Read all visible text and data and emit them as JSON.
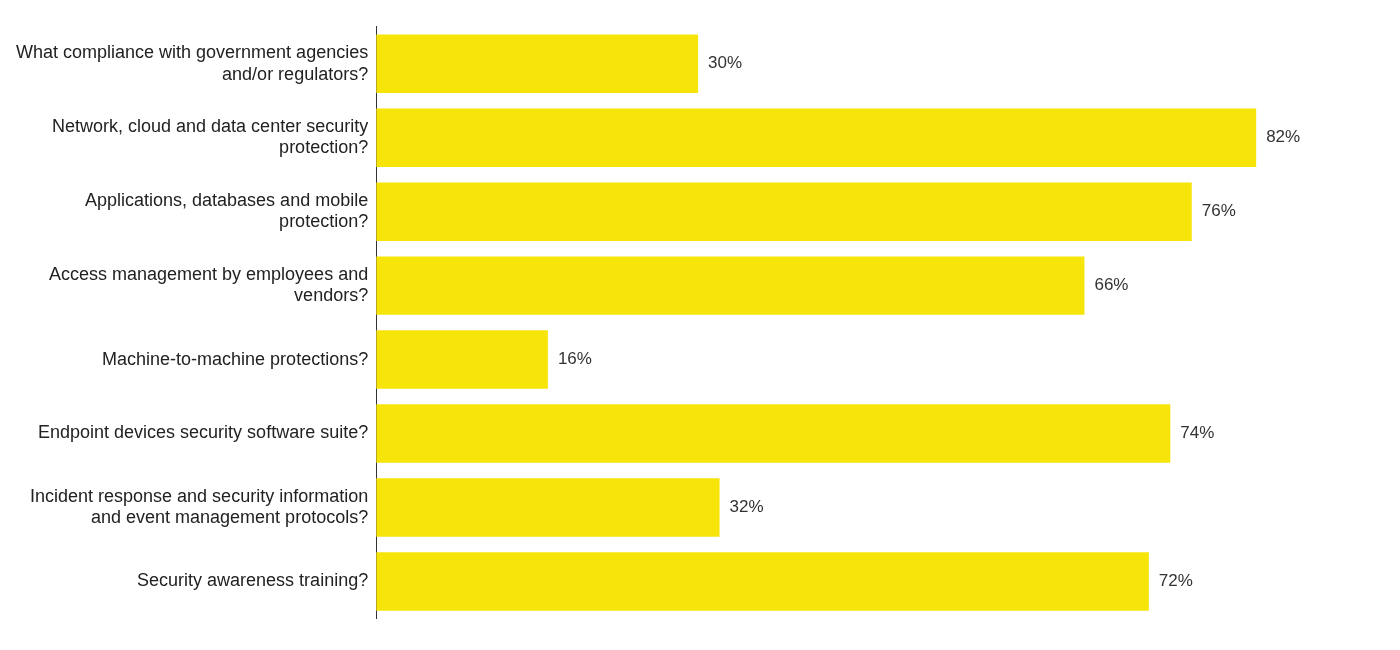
{
  "chart_data": {
    "type": "bar",
    "orientation": "horizontal",
    "categories": [
      "What compliance with government agencies and/or regulators?",
      "Network, cloud and data center security protection?",
      "Applications, databases and mobile protection?",
      "Access management by employees and vendors?",
      "Machine-to-machine protections?",
      "Endpoint devices security software suite?",
      "Incident response and security information and event management protocols?",
      "Security awareness training?"
    ],
    "values": [
      30,
      82,
      76,
      66,
      16,
      74,
      32,
      72
    ],
    "value_labels": [
      "30%",
      "82%",
      "76%",
      "66%",
      "16%",
      "74%",
      "32%",
      "72%"
    ],
    "color": "#f7e50a",
    "legend": false
  }
}
